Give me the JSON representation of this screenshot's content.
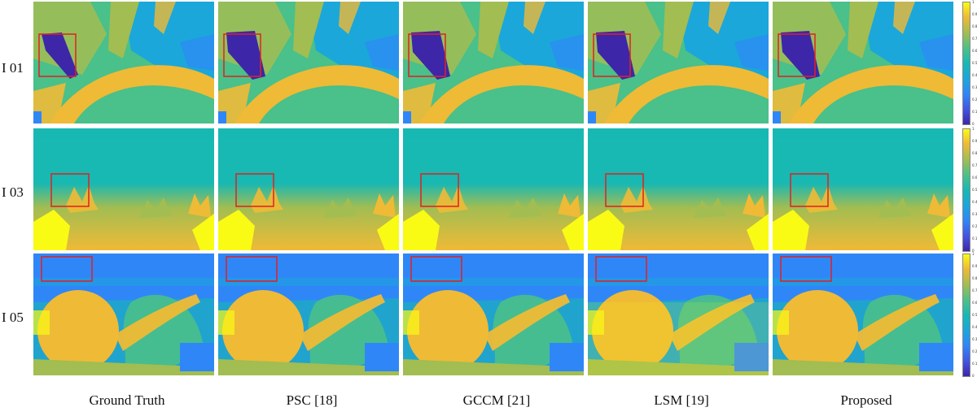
{
  "rows": [
    {
      "label": "I 01"
    },
    {
      "label": "I 03"
    },
    {
      "label": "I 05"
    }
  ],
  "columns": [
    {
      "label": "Ground Truth"
    },
    {
      "label": "PSC [18]"
    },
    {
      "label": "GCCM [21]"
    },
    {
      "label": "LSM [19]"
    },
    {
      "label": "Proposed"
    }
  ],
  "colorbar": {
    "ticks": [
      "1",
      "0.9",
      "0.8",
      "0.7",
      "0.6",
      "0.5",
      "0.4",
      "0.3",
      "0.2",
      "0.1",
      "0"
    ],
    "colormap": "parula",
    "range": [
      0,
      1
    ]
  },
  "colors": {
    "highlight_box": "#e02020",
    "deep_blue": "#3e26a8",
    "blue": "#2f87f7",
    "cyan": "#1ba7da",
    "teal": "#18b8b3",
    "green": "#4ac08a",
    "yellow_green": "#a2bd52",
    "orange": "#efba36",
    "yellow": "#f9fb15"
  }
}
